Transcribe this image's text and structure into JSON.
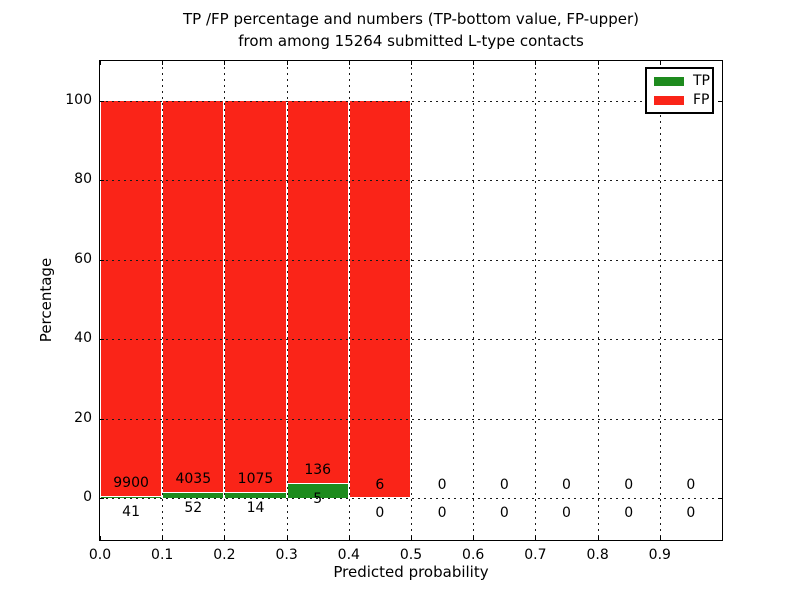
{
  "chart_data": {
    "type": "bar",
    "variant": "stacked-100-percent",
    "title": "TP /FP percentage and numbers (TP-bottom value, FP-upper) from among 15264 submitted L-type contacts",
    "title_line1": "TP /FP percentage and numbers (TP-bottom value, FP-upper)",
    "title_line2": "from among 15264 submitted L-type contacts",
    "total_submitted_contacts": 15264,
    "xlabel": "Predicted probability",
    "ylabel": "Percentage",
    "xlim": [
      0.0,
      1.0
    ],
    "ylim": [
      -10.5,
      110
    ],
    "x_tick_labels": [
      "0.0",
      "0.1",
      "0.2",
      "0.3",
      "0.4",
      "0.5",
      "0.6",
      "0.7",
      "0.8",
      "0.9"
    ],
    "y_tick_labels": [
      "0",
      "20",
      "40",
      "60",
      "80",
      "100"
    ],
    "grid": "dotted, black, drawn above bars",
    "bin_width": 0.1,
    "bins": [
      {
        "range": [
          0.0,
          0.1
        ],
        "tp": 41,
        "fp": 9900,
        "tp_pct": 0.41,
        "fp_pct": 99.59
      },
      {
        "range": [
          0.1,
          0.2
        ],
        "tp": 52,
        "fp": 4035,
        "tp_pct": 1.27,
        "fp_pct": 98.73
      },
      {
        "range": [
          0.2,
          0.3
        ],
        "tp": 14,
        "fp": 1075,
        "tp_pct": 1.29,
        "fp_pct": 98.71
      },
      {
        "range": [
          0.3,
          0.4
        ],
        "tp": 5,
        "fp": 136,
        "tp_pct": 3.55,
        "fp_pct": 96.45
      },
      {
        "range": [
          0.4,
          0.5
        ],
        "tp": 0,
        "fp": 6,
        "tp_pct": 0.0,
        "fp_pct": 100.0
      },
      {
        "range": [
          0.5,
          0.6
        ],
        "tp": 0,
        "fp": 0,
        "tp_pct": null,
        "fp_pct": null
      },
      {
        "range": [
          0.6,
          0.7
        ],
        "tp": 0,
        "fp": 0,
        "tp_pct": null,
        "fp_pct": null
      },
      {
        "range": [
          0.7,
          0.8
        ],
        "tp": 0,
        "fp": 0,
        "tp_pct": null,
        "fp_pct": null
      },
      {
        "range": [
          0.8,
          0.9
        ],
        "tp": 0,
        "fp": 0,
        "tp_pct": null,
        "fp_pct": null
      },
      {
        "range": [
          0.9,
          1.0
        ],
        "tp": 0,
        "fp": 0,
        "tp_pct": null,
        "fp_pct": null
      }
    ],
    "series": [
      {
        "name": "TP",
        "color": "#1e8b1e",
        "counts": [
          41,
          52,
          14,
          5,
          0,
          0,
          0,
          0,
          0,
          0
        ]
      },
      {
        "name": "FP",
        "color": "#fa2418",
        "counts": [
          9900,
          4035,
          1075,
          136,
          6,
          0,
          0,
          0,
          0,
          0
        ]
      }
    ],
    "legend": {
      "position": "upper right",
      "entries": [
        {
          "label": "TP",
          "color": "#1e8b1e"
        },
        {
          "label": "FP",
          "color": "#fa2418"
        }
      ]
    },
    "colors": {
      "tp": "#1e8b1e",
      "fp": "#fa2418",
      "bar_edge": "#ffffff",
      "grid": "#1a1a1a",
      "text": "#000000",
      "background": "#ffffff"
    }
  }
}
